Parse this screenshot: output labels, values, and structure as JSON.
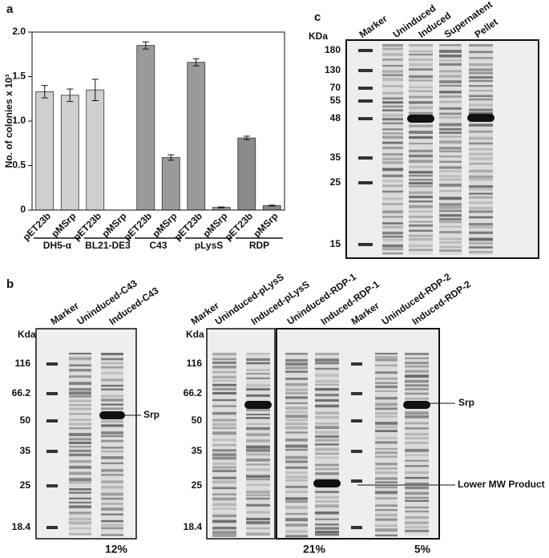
{
  "chart_data": {
    "type": "bar",
    "panel_label": "a",
    "ylabel": "No. of colonies x 10³",
    "categories": [
      "pET23b",
      "pMSrp",
      "pET23b",
      "pMSrp",
      "pET23b",
      "pMSrp",
      "pET23b",
      "pMSrp",
      "pET23b",
      "pMSrp"
    ],
    "groups": [
      "DH5-α",
      "BL21-DE3",
      "C43",
      "pLysS",
      "RDP"
    ],
    "values": [
      1.33,
      1.29,
      1.35,
      0,
      1.85,
      0.59,
      1.66,
      0.03,
      0.81,
      0.05
    ],
    "errors": [
      0.07,
      0.07,
      0.12,
      null,
      0.04,
      0.03,
      0.04,
      0.005,
      0.02,
      0.005
    ],
    "colors": [
      "#cfcfcf",
      "#cfcfcf",
      "#cfcfcf",
      "#cfcfcf",
      "#9a9a9a",
      "#9a9a9a",
      "#9a9a9a",
      "#9a9a9a",
      "#8a8a8a",
      "#8a8a8a"
    ],
    "ylim": [
      0,
      2.0
    ],
    "yticks": [
      0,
      0.5,
      {
        "value": 1.0,
        "label": "1.0"
      },
      1.5,
      {
        "value": 2.0,
        "label": "2.0"
      }
    ]
  },
  "panel_c": {
    "label": "c",
    "unit": "KDa",
    "lanes": [
      "Marker",
      "Uninduced",
      "Induced",
      "Supernatent",
      "Pellet"
    ],
    "markers": [
      "180",
      "130",
      "70",
      "55",
      "48",
      "35",
      "25",
      "15"
    ]
  },
  "panel_b": {
    "label": "b",
    "left": {
      "unit": "Kda",
      "lanes": [
        "Marker",
        "Uninduced-C43",
        "Induced-C43"
      ],
      "markers": [
        "116",
        "66.2",
        "50",
        "35",
        "25",
        "18.4"
      ],
      "annotation": "Srp",
      "percent": "12%"
    },
    "right": {
      "unit": "Kda",
      "lanes": [
        "Marker",
        "Uninduced-pLysS",
        "Induced-pLysS",
        "Uninduced-RDP-1",
        "Induced-RDP-1",
        "Marker",
        "Uninduced-RDP-2",
        "Induced-RDP-2"
      ],
      "markers": [
        "116",
        "66.2",
        "50",
        "35",
        "25",
        "18.4"
      ],
      "annotations": [
        "Srp",
        "Lower MW Product"
      ],
      "percents": [
        "21%",
        "5%"
      ]
    }
  }
}
